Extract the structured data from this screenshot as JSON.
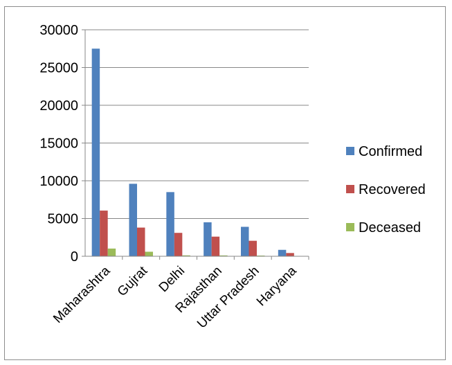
{
  "chart_data": {
    "type": "bar",
    "title": "",
    "xlabel": "",
    "ylabel": "",
    "categories": [
      "Maharashtra",
      "Gujrat",
      "Delhi",
      "Rajasthan",
      "Uttar Pradesh",
      "Haryana"
    ],
    "series": [
      {
        "name": "Confirmed",
        "color": "#4f81bd",
        "values": [
          27500,
          9600,
          8500,
          4500,
          3900,
          850
        ]
      },
      {
        "name": "Recovered",
        "color": "#c0504d",
        "values": [
          6050,
          3800,
          3100,
          2600,
          2050,
          430
        ]
      },
      {
        "name": "Deceased",
        "color": "#9bbb59",
        "values": [
          1020,
          600,
          120,
          110,
          90,
          20
        ]
      }
    ],
    "ylim": [
      0,
      30000
    ],
    "yticks": [
      0,
      5000,
      10000,
      15000,
      20000,
      25000,
      30000
    ],
    "grid": true,
    "legend": "right"
  }
}
